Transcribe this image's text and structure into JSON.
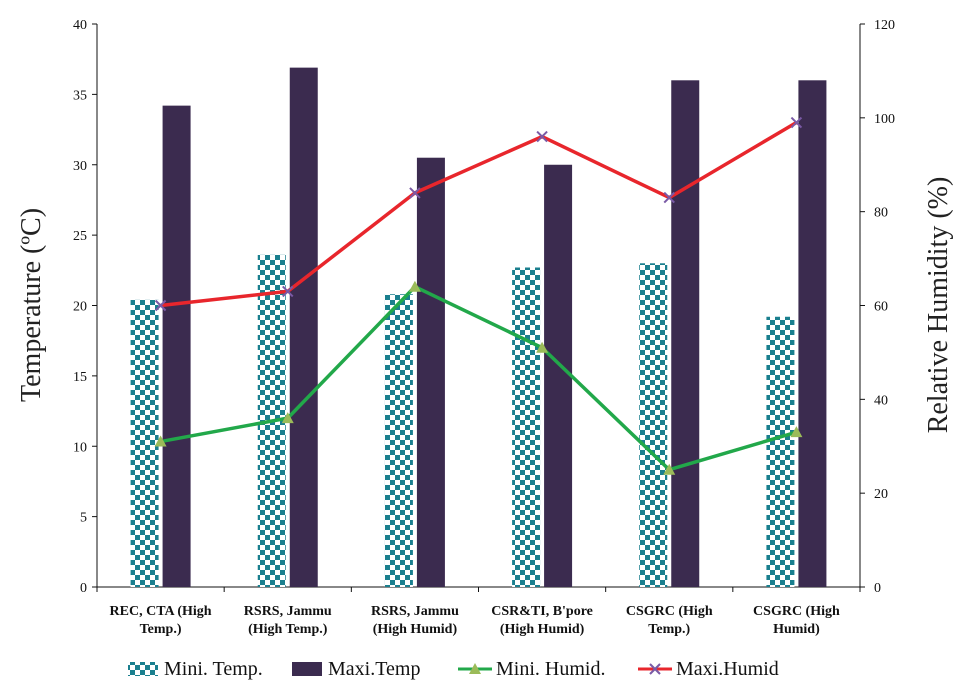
{
  "chart_data": {
    "type": "bar",
    "categories": [
      [
        "REC, CTA (High",
        "Temp.)"
      ],
      [
        "RSRS, Jammu",
        "(High Temp.)"
      ],
      [
        "RSRS, Jammu",
        "(High Humid)"
      ],
      [
        "CSR&TI, B'pore",
        "(High Humid)"
      ],
      [
        "CSGRC (High",
        "Temp.)"
      ],
      [
        "CSGRC (High",
        "Humid)"
      ]
    ],
    "series": [
      {
        "name": "Mini. Temp.",
        "kind": "bar",
        "axis": "left",
        "pattern": "checker",
        "color": "#1a7f8e",
        "values": [
          20.4,
          23.6,
          20.8,
          22.7,
          23.0,
          19.2
        ]
      },
      {
        "name": "Maxi.Temp",
        "kind": "bar",
        "axis": "left",
        "color": "#3b2b4f",
        "values": [
          34.2,
          36.9,
          30.5,
          30.0,
          36.0,
          36.0
        ]
      },
      {
        "name": "Mini. Humid.",
        "kind": "line",
        "axis": "right",
        "color": "#22a84a",
        "marker": "triangle",
        "marker_color": "#9bbb59",
        "values": [
          31,
          36,
          64,
          51,
          25,
          33
        ]
      },
      {
        "name": "Maxi.Humid",
        "kind": "line",
        "axis": "right",
        "color": "#e8262c",
        "marker": "x",
        "marker_color": "#7a5aa6",
        "values": [
          60,
          63,
          84,
          96,
          83,
          99
        ]
      }
    ],
    "ylabel": "Temperature (ºC)",
    "y2label": "Relative Humidity (%)",
    "ylim": [
      0,
      40
    ],
    "yticks": [
      0,
      5,
      10,
      15,
      20,
      25,
      30,
      35,
      40
    ],
    "y2lim": [
      0,
      120
    ],
    "y2ticks": [
      0,
      20,
      40,
      60,
      80,
      100,
      120
    ],
    "grid": false,
    "legend_position": "bottom"
  }
}
